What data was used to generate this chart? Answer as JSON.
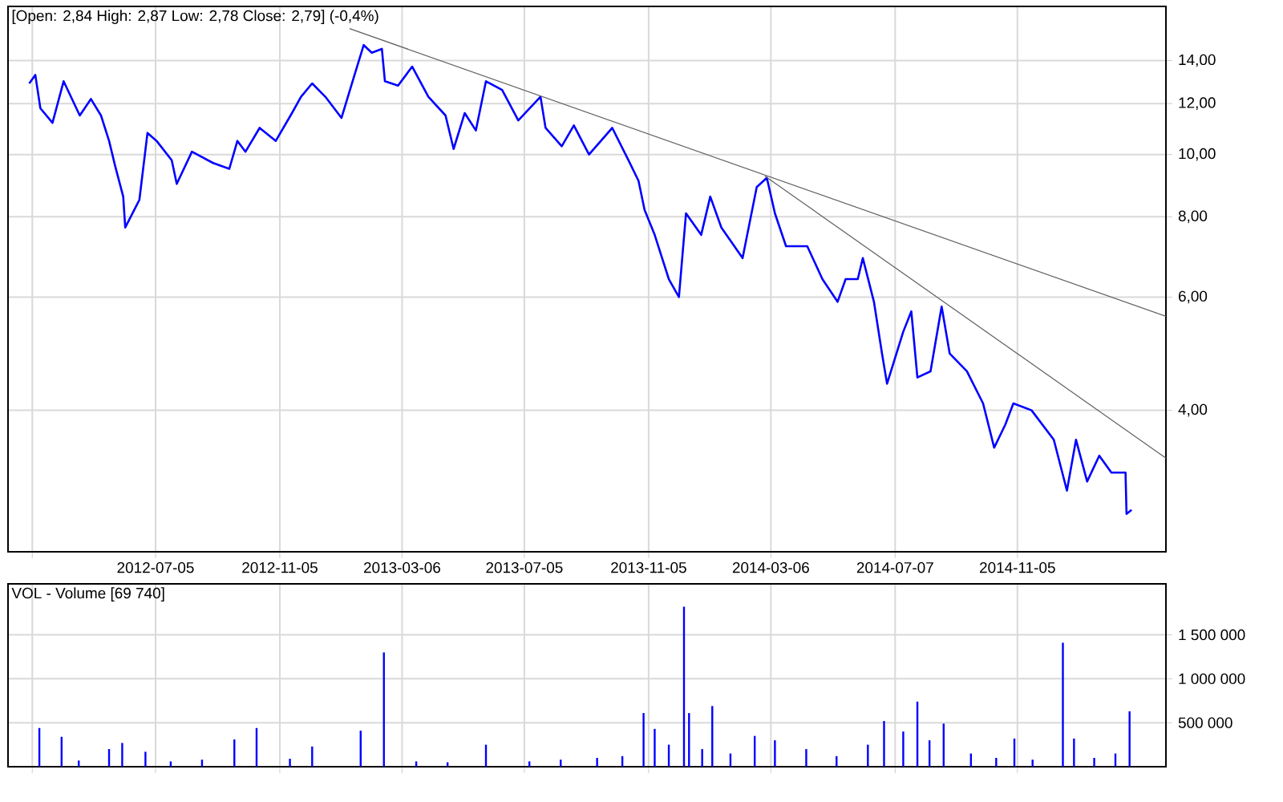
{
  "chart_data": [
    {
      "type": "line",
      "title": "[Open: 2,84  High: 2,87  Low: 2,78  Close: 2,79] (-0,4%)",
      "xlim": [
        "2012-02-10",
        "2015-04-01"
      ],
      "xticks": [
        {
          "value": "2012-03-05",
          "label": null
        },
        {
          "value": "2012-07-05",
          "label": "2012-07-05"
        },
        {
          "value": "2012-11-05",
          "label": "2012-11-05"
        },
        {
          "value": "2013-03-06",
          "label": "2013-03-06"
        },
        {
          "value": "2013-07-05",
          "label": "2013-07-05"
        },
        {
          "value": "2013-11-05",
          "label": "2013-11-05"
        },
        {
          "value": "2014-03-06",
          "label": "2014-03-06"
        },
        {
          "value": "2014-07-07",
          "label": "2014-07-07"
        },
        {
          "value": "2014-11-05",
          "label": "2014-11-05"
        }
      ],
      "ylim": [
        2.41,
        17.0
      ],
      "yticks": [
        {
          "value": 4,
          "label": "4,00"
        },
        {
          "value": 6,
          "label": "6,00"
        },
        {
          "value": 8,
          "label": "8,00"
        },
        {
          "value": 10,
          "label": "10,00"
        },
        {
          "value": 12,
          "label": "12,00"
        },
        {
          "value": 14,
          "label": "14,00"
        }
      ],
      "log": true,
      "grid": true,
      "series": [
        {
          "color": "#0000ff",
          "x": [
            "2012-03-02",
            "2012-03-08",
            "2012-03-13",
            "2012-03-25",
            "2012-04-05",
            "2012-04-21",
            "2012-05-02",
            "2012-05-12",
            "2012-05-20",
            "2012-05-26",
            "2012-06-03",
            "2012-06-05",
            "2012-06-19",
            "2012-06-27",
            "2012-07-06",
            "2012-07-21",
            "2012-07-26",
            "2012-08-10",
            "2012-08-31",
            "2012-09-16",
            "2012-09-24",
            "2012-10-02",
            "2012-10-16",
            "2012-11-01",
            "2012-11-17",
            "2012-11-26",
            "2012-12-07",
            "2012-12-20",
            "2013-01-05",
            "2013-01-16",
            "2013-01-27",
            "2013-02-04",
            "2013-02-14",
            "2013-02-17",
            "2013-03-02",
            "2013-03-16",
            "2013-04-01",
            "2013-04-18",
            "2013-04-26",
            "2013-05-07",
            "2013-05-18",
            "2013-05-28",
            "2013-06-13",
            "2013-06-29",
            "2013-07-21",
            "2013-07-26",
            "2013-08-11",
            "2013-08-23",
            "2013-09-07",
            "2013-09-30",
            "2013-10-16",
            "2013-10-26",
            "2013-11-01",
            "2013-11-11",
            "2013-11-25",
            "2013-12-05",
            "2013-12-12",
            "2013-12-27",
            "2014-01-05",
            "2014-01-16",
            "2014-02-06",
            "2014-02-20",
            "2014-03-02",
            "2014-03-10",
            "2014-03-21",
            "2014-04-11",
            "2014-04-26",
            "2014-05-11",
            "2014-05-19",
            "2014-05-31",
            "2014-06-05",
            "2014-06-16",
            "2014-06-24",
            "2014-06-29",
            "2014-07-15",
            "2014-07-23",
            "2014-07-29",
            "2014-08-11",
            "2014-08-22",
            "2014-08-30",
            "2014-09-16",
            "2014-10-02",
            "2014-10-13",
            "2014-10-24",
            "2014-11-01",
            "2014-11-19",
            "2014-12-11",
            "2014-12-24",
            "2015-01-02",
            "2015-01-13",
            "2015-01-25",
            "2015-02-06",
            "2015-02-20",
            "2015-02-21",
            "2015-02-26"
          ],
          "values": [
            12.9,
            13.3,
            11.8,
            11.2,
            13.0,
            11.5,
            12.2,
            11.5,
            10.5,
            9.6,
            8.6,
            7.7,
            8.5,
            10.8,
            10.5,
            9.8,
            9.0,
            10.1,
            9.7,
            9.5,
            10.5,
            10.1,
            11.0,
            10.5,
            11.6,
            12.3,
            12.9,
            12.3,
            11.4,
            13.0,
            14.8,
            14.4,
            14.6,
            13.0,
            12.8,
            13.7,
            12.3,
            11.5,
            10.2,
            11.6,
            10.9,
            13.0,
            12.6,
            11.3,
            12.3,
            11.0,
            10.3,
            11.1,
            10.0,
            11.0,
            9.8,
            9.1,
            8.2,
            7.5,
            6.4,
            6.0,
            8.1,
            7.5,
            8.6,
            7.7,
            6.9,
            8.9,
            9.2,
            8.1,
            7.2,
            7.2,
            6.4,
            5.9,
            6.4,
            6.4,
            6.9,
            5.9,
            4.9,
            4.4,
            5.3,
            5.7,
            4.5,
            4.6,
            5.8,
            4.9,
            4.6,
            4.1,
            3.5,
            3.8,
            4.1,
            4.0,
            3.6,
            3.0,
            3.6,
            3.1,
            3.4,
            3.2,
            3.2,
            2.76,
            2.8
          ]
        },
        {
          "type": "line",
          "color": "#606060",
          "x": [
            "2013-01-13",
            "2015-04-01"
          ],
          "values": [
            15.7,
            5.6
          ]
        },
        {
          "type": "line",
          "color": "#606060",
          "x": [
            "2014-02-28",
            "2015-04-01"
          ],
          "values": [
            9.26,
            3.37
          ]
        }
      ]
    },
    {
      "type": "bar",
      "title": "VOL - Volume [69 740]",
      "color": "#0000ff",
      "xlim": [
        "2012-02-10",
        "2015-04-01"
      ],
      "xticks": [
        {
          "value": "2012-03-05",
          "label": null
        },
        {
          "value": "2012-07-05",
          "label": null
        },
        {
          "value": "2012-11-05",
          "label": null
        },
        {
          "value": "2013-03-06",
          "label": null
        },
        {
          "value": "2013-07-05",
          "label": null
        },
        {
          "value": "2013-11-05",
          "label": null
        },
        {
          "value": "2014-03-06",
          "label": null
        },
        {
          "value": "2014-07-07",
          "label": null
        },
        {
          "value": "2014-11-05",
          "label": null
        }
      ],
      "ylim": [
        0,
        2080000
      ],
      "yticks": [
        {
          "value": 500000,
          "label": "500 000"
        },
        {
          "value": 1000000,
          "label": "1 000 000"
        },
        {
          "value": 1500000,
          "label": "1 500 000"
        }
      ],
      "grid": true,
      "tick_labels": "y",
      "x": [
        "2012-03-12",
        "2012-04-03",
        "2012-04-20",
        "2012-05-20",
        "2012-06-02",
        "2012-06-25",
        "2012-07-20",
        "2012-08-20",
        "2012-09-21",
        "2012-10-13",
        "2012-11-15",
        "2012-12-07",
        "2013-01-24",
        "2013-02-16",
        "2013-03-20",
        "2013-04-20",
        "2013-05-28",
        "2013-07-10",
        "2013-08-10",
        "2013-09-15",
        "2013-10-10",
        "2013-10-31",
        "2013-11-11",
        "2013-11-25",
        "2013-12-10",
        "2013-12-15",
        "2013-12-28",
        "2014-01-07",
        "2014-01-25",
        "2014-02-18",
        "2014-03-10",
        "2014-04-10",
        "2014-05-10",
        "2014-06-10",
        "2014-06-26",
        "2014-07-15",
        "2014-07-29",
        "2014-08-10",
        "2014-08-24",
        "2014-09-20",
        "2014-10-15",
        "2014-11-02",
        "2014-11-20",
        "2014-12-20",
        "2014-12-31",
        "2015-01-20",
        "2015-02-10",
        "2015-02-24"
      ],
      "values": [
        440000,
        340000,
        70000,
        200000,
        270000,
        170000,
        60000,
        80000,
        310000,
        440000,
        90000,
        230000,
        410000,
        1300000,
        60000,
        50000,
        250000,
        60000,
        80000,
        100000,
        120000,
        610000,
        430000,
        250000,
        1820000,
        610000,
        200000,
        690000,
        150000,
        350000,
        300000,
        200000,
        120000,
        250000,
        520000,
        400000,
        740000,
        300000,
        490000,
        150000,
        100000,
        320000,
        80000,
        1410000,
        320000,
        100000,
        150000,
        630000
      ]
    }
  ]
}
